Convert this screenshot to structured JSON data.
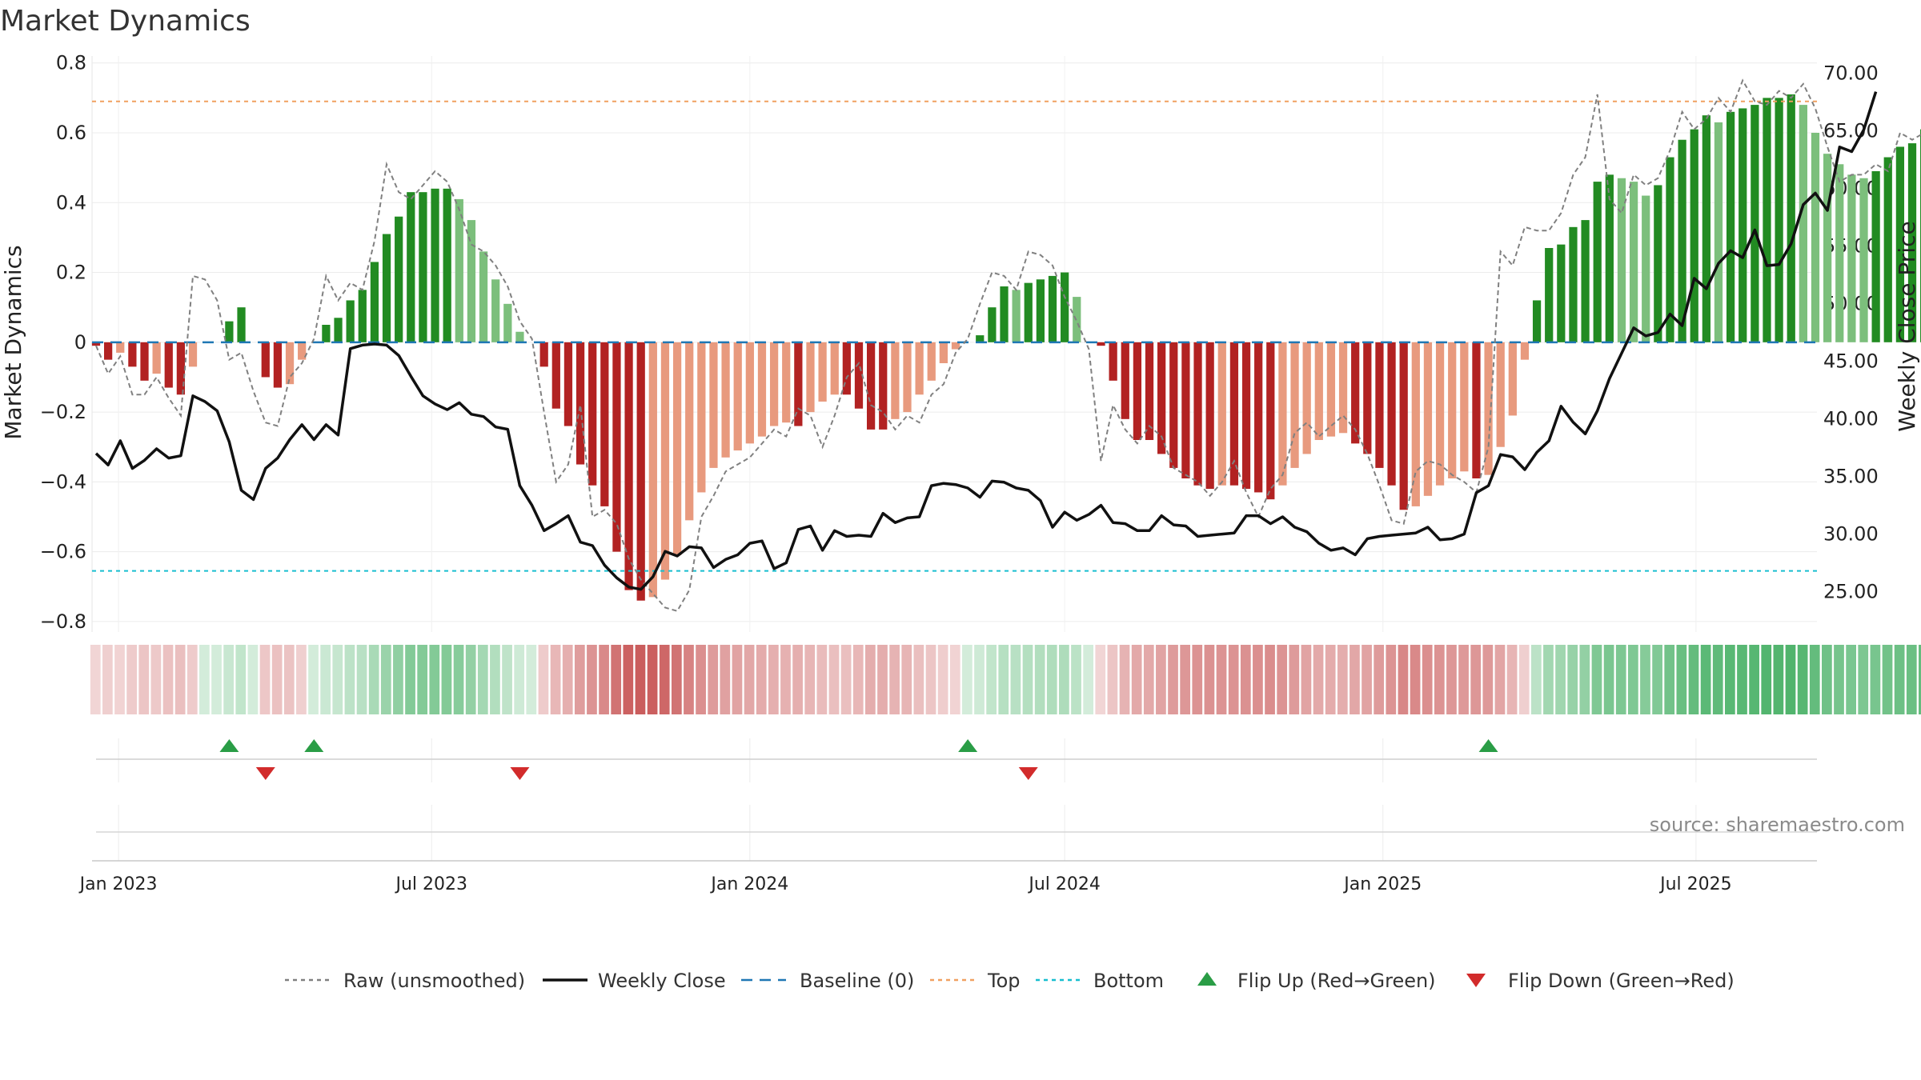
{
  "chart_data": {
    "title": "Market Dynamics",
    "type": "bar+line",
    "y_left": {
      "label": "Market Dynamics",
      "range": [
        -0.83,
        0.82
      ],
      "ticks": [
        "0.8",
        "0.6",
        "0.4",
        "0.2",
        "0",
        "−0.2",
        "−0.4",
        "−0.6",
        "−0.8"
      ],
      "tick_values": [
        0.8,
        0.6,
        0.4,
        0.2,
        0,
        -0.2,
        -0.4,
        -0.6,
        -0.8
      ]
    },
    "y_right": {
      "label": "Weekly Close Price",
      "range": [
        21.5,
        71.5
      ],
      "ticks": [
        "70.00",
        "65.00",
        "60.00",
        "55.00",
        "50.00",
        "45.00",
        "40.00",
        "35.00",
        "30.00",
        "25.00"
      ],
      "tick_values": [
        70,
        65,
        60,
        55,
        50,
        45,
        40,
        35,
        30,
        25
      ]
    },
    "x_axis": {
      "start": "2022-12-19",
      "end": "2025-09-08",
      "ticks": [
        {
          "label": "Jan 2023",
          "date": "2023-01-01"
        },
        {
          "label": "Jul 2023",
          "date": "2023-07-01"
        },
        {
          "label": "Jan 2024",
          "date": "2024-01-01"
        },
        {
          "label": "Jul 2024",
          "date": "2024-07-01"
        },
        {
          "label": "Jan 2025",
          "date": "2025-01-01"
        },
        {
          "label": "Jul 2025",
          "date": "2025-07-01"
        }
      ]
    },
    "start_date": "2022-12-19",
    "interval_days": 7,
    "levels": {
      "top": 0.69,
      "bottom": -0.655,
      "baseline": 0
    },
    "momentum": [
      -0.01,
      -0.05,
      -0.03,
      -0.07,
      -0.11,
      -0.09,
      -0.13,
      -0.15,
      -0.07,
      0,
      0,
      0.06,
      0.1,
      0,
      -0.1,
      -0.13,
      -0.12,
      -0.05,
      0,
      0.05,
      0.07,
      0.12,
      0.15,
      0.23,
      0.31,
      0.36,
      0.43,
      0.43,
      0.44,
      0.44,
      0.41,
      0.35,
      0.26,
      0.18,
      0.11,
      0.03,
      0,
      -0.07,
      -0.19,
      -0.24,
      -0.35,
      -0.41,
      -0.47,
      -0.6,
      -0.71,
      -0.74,
      -0.73,
      -0.68,
      -0.61,
      -0.51,
      -0.43,
      -0.36,
      -0.33,
      -0.31,
      -0.29,
      -0.27,
      -0.24,
      -0.23,
      -0.24,
      -0.2,
      -0.17,
      -0.15,
      -0.15,
      -0.19,
      -0.25,
      -0.25,
      -0.22,
      -0.2,
      -0.15,
      -0.11,
      -0.06,
      -0.02,
      0,
      0.02,
      0.1,
      0.16,
      0.15,
      0.17,
      0.18,
      0.19,
      0.2,
      0.13,
      0,
      -0.01,
      -0.11,
      -0.22,
      -0.28,
      -0.28,
      -0.32,
      -0.36,
      -0.39,
      -0.41,
      -0.42,
      -0.41,
      -0.41,
      -0.42,
      -0.43,
      -0.45,
      -0.41,
      -0.36,
      -0.32,
      -0.28,
      -0.27,
      -0.26,
      -0.29,
      -0.32,
      -0.36,
      -0.41,
      -0.48,
      -0.47,
      -0.44,
      -0.41,
      -0.39,
      -0.37,
      -0.39,
      -0.38,
      -0.3,
      -0.21,
      -0.05,
      0.12,
      0.27,
      0.28,
      0.33,
      0.35,
      0.46,
      0.48,
      0.47,
      0.46,
      0.42,
      0.45,
      0.53,
      0.58,
      0.61,
      0.65,
      0.63,
      0.66,
      0.67,
      0.68,
      0.7,
      0.7,
      0.71,
      0.68,
      0.6,
      0.54,
      0.51,
      0.48,
      0.47,
      0.49,
      0.53,
      0.56,
      0.57,
      0.61
    ],
    "raw": [
      -0.01,
      -0.09,
      -0.04,
      -0.15,
      -0.15,
      -0.1,
      -0.16,
      -0.21,
      0.19,
      0.18,
      0.12,
      -0.05,
      -0.03,
      -0.14,
      -0.23,
      -0.24,
      -0.1,
      -0.06,
      0.01,
      0.19,
      0.12,
      0.17,
      0.15,
      0.29,
      0.51,
      0.43,
      0.41,
      0.45,
      0.49,
      0.46,
      0.38,
      0.28,
      0.26,
      0.22,
      0.16,
      0.06,
      0.01,
      -0.2,
      -0.4,
      -0.35,
      -0.18,
      -0.5,
      -0.48,
      -0.52,
      -0.62,
      -0.68,
      -0.72,
      -0.76,
      -0.77,
      -0.71,
      -0.5,
      -0.44,
      -0.37,
      -0.35,
      -0.33,
      -0.29,
      -0.25,
      -0.27,
      -0.19,
      -0.21,
      -0.3,
      -0.21,
      -0.1,
      -0.06,
      -0.18,
      -0.2,
      -0.25,
      -0.21,
      -0.23,
      -0.15,
      -0.12,
      -0.03,
      0.01,
      0.11,
      0.2,
      0.19,
      0.15,
      0.26,
      0.25,
      0.22,
      0.13,
      0.06,
      -0.02,
      -0.34,
      -0.18,
      -0.25,
      -0.29,
      -0.24,
      -0.27,
      -0.36,
      -0.38,
      -0.4,
      -0.44,
      -0.4,
      -0.34,
      -0.43,
      -0.5,
      -0.42,
      -0.38,
      -0.26,
      -0.23,
      -0.27,
      -0.24,
      -0.21,
      -0.25,
      -0.32,
      -0.41,
      -0.51,
      -0.52,
      -0.37,
      -0.34,
      -0.35,
      -0.38,
      -0.4,
      -0.43,
      -0.3,
      0.26,
      0.22,
      0.33,
      0.32,
      0.32,
      0.37,
      0.48,
      0.53,
      0.71,
      0.41,
      0.37,
      0.48,
      0.45,
      0.47,
      0.55,
      0.66,
      0.61,
      0.64,
      0.7,
      0.66,
      0.75,
      0.69,
      0.68,
      0.72,
      0.7,
      0.74,
      0.67,
      0.56,
      0.46,
      0.48,
      0.48,
      0.51,
      0.49,
      0.6,
      0.58,
      0.6,
      0.66
    ],
    "close": [
      37.0,
      36.0,
      38.1,
      35.7,
      36.4,
      37.4,
      36.6,
      36.8,
      42.0,
      41.5,
      40.7,
      38.0,
      33.8,
      33.0,
      35.7,
      36.6,
      38.2,
      39.5,
      38.2,
      39.5,
      38.6,
      46.1,
      46.4,
      46.5,
      46.4,
      45.5,
      43.7,
      42.0,
      41.3,
      40.8,
      41.4,
      40.4,
      40.2,
      39.3,
      39.1,
      34.2,
      32.5,
      30.3,
      30.9,
      31.6,
      29.3,
      29.0,
      27.3,
      26.2,
      25.4,
      25.2,
      26.3,
      28.5,
      28.1,
      28.9,
      28.8,
      27.1,
      27.8,
      28.2,
      29.2,
      29.4,
      27.0,
      27.5,
      30.4,
      30.7,
      28.6,
      30.3,
      29.8,
      29.9,
      29.8,
      31.8,
      31.0,
      31.4,
      31.5,
      34.2,
      34.4,
      34.3,
      34.0,
      33.2,
      34.6,
      34.5,
      34.0,
      33.8,
      32.9,
      30.6,
      31.9,
      31.2,
      31.7,
      32.5,
      31.0,
      30.9,
      30.3,
      30.3,
      31.6,
      30.8,
      30.7,
      29.8,
      29.9,
      30.0,
      30.1,
      31.6,
      31.6,
      30.9,
      31.5,
      30.6,
      30.2,
      29.2,
      28.6,
      28.8,
      28.2,
      29.6,
      29.8,
      29.9,
      30.0,
      30.1,
      30.6,
      29.5,
      29.6,
      30.0,
      33.6,
      34.2,
      36.9,
      36.7,
      35.6,
      37.1,
      38.1,
      41.1,
      39.7,
      38.7,
      40.7,
      43.5,
      45.7,
      47.9,
      47.2,
      47.5,
      49.1,
      48.1,
      52.2,
      51.3,
      53.5,
      54.6,
      54.0,
      56.4,
      53.3,
      53.4,
      55.2,
      58.6,
      59.6,
      58.1,
      63.6,
      63.2,
      65.1,
      68.4
    ],
    "flip_up_dates": [
      "2023-03-06",
      "2023-04-24",
      "2024-05-06",
      "2025-03-03"
    ],
    "flip_down_dates": [
      "2023-03-27",
      "2023-08-21",
      "2024-06-10"
    ],
    "series": [
      {
        "name": "Raw (unsmoothed)",
        "color": "#808080",
        "style": "dotted"
      },
      {
        "name": "Weekly Close",
        "color": "#111111",
        "style": "solid"
      },
      {
        "name": "Baseline (0)",
        "color": "#1f77b4",
        "style": "dashed"
      },
      {
        "name": "Top",
        "color": "#f0a060",
        "style": "dotted"
      },
      {
        "name": "Bottom",
        "color": "#17becf",
        "style": "dotted"
      },
      {
        "name": "Flip Up (Red→Green)",
        "color": "#2a9d46",
        "style": "marker-up"
      },
      {
        "name": "Flip Down (Green→Red)",
        "color": "#d22b2b",
        "style": "marker-down"
      }
    ],
    "colors": {
      "up_strong": "#228b22",
      "up_weak": "#7cbf7c",
      "down_strong": "#b22222",
      "down_weak": "#e89a7e"
    },
    "grid": true,
    "legend_position": "bottom-center",
    "source": "source: sharemaestro.com"
  }
}
